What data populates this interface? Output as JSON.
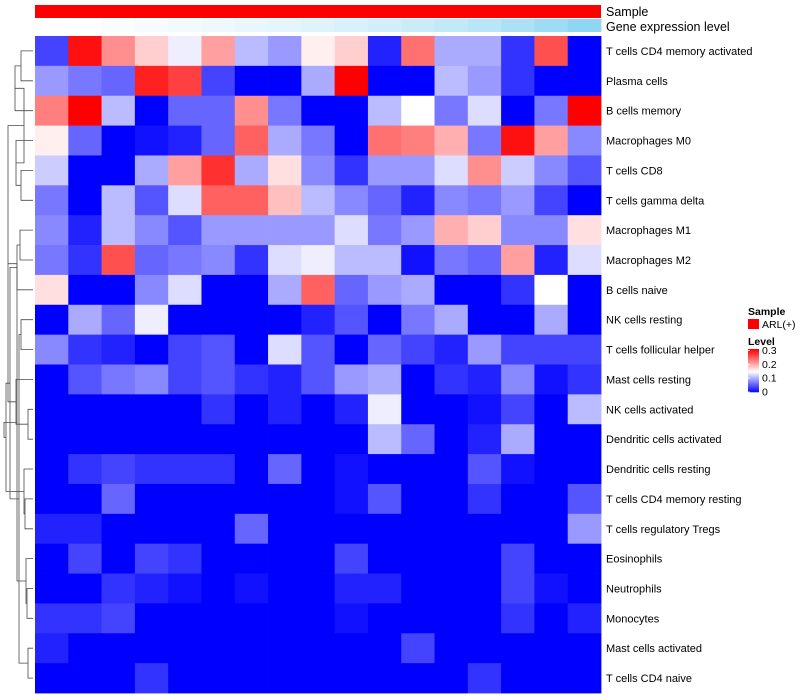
{
  "chart_data": {
    "type": "heatmap",
    "title": "",
    "annotations": {
      "sample_label": "Sample",
      "expression_label": "Gene expression level"
    },
    "rows": [
      "T cells CD4 memory activated",
      "Plasma cells",
      "B cells memory",
      "Macrophages M0",
      "T cells CD8",
      "T cells gamma delta",
      "Macrophages M1",
      "Macrophages M2",
      "B cells naive",
      "NK cells resting",
      "T cells follicular helper",
      "Mast cells resting",
      "NK cells activated",
      "Dendritic cells activated",
      "Dendritic cells resting",
      "T cells CD4 memory resting",
      "T cells regulatory  Tregs",
      "Eosinophils",
      "Neutrophils",
      "Monocytes",
      "Mast cells activated",
      "T cells CD4 naive"
    ],
    "n_columns": 17,
    "values": [
      [
        0.04,
        0.3,
        0.22,
        0.18,
        0.14,
        0.21,
        0.11,
        0.09,
        0.16,
        0.18,
        0.02,
        0.24,
        0.1,
        0.1,
        0.03,
        0.26,
        0.0
      ],
      [
        0.09,
        0.07,
        0.06,
        0.29,
        0.27,
        0.04,
        0.0,
        0.0,
        0.1,
        0.31,
        0.0,
        0.0,
        0.11,
        0.09,
        0.03,
        0.0,
        0.0
      ],
      [
        0.23,
        0.31,
        0.11,
        0.0,
        0.06,
        0.06,
        0.22,
        0.07,
        0.0,
        0.0,
        0.11,
        0.15,
        0.07,
        0.13,
        0.0,
        0.07,
        0.31
      ],
      [
        0.16,
        0.06,
        0.0,
        0.01,
        0.02,
        0.06,
        0.25,
        0.1,
        0.07,
        0.0,
        0.24,
        0.23,
        0.2,
        0.07,
        0.3,
        0.21,
        0.08
      ],
      [
        0.12,
        0.0,
        0.0,
        0.1,
        0.21,
        0.28,
        0.1,
        0.17,
        0.08,
        0.03,
        0.09,
        0.09,
        0.13,
        0.22,
        0.12,
        0.08,
        0.05
      ],
      [
        0.07,
        0.0,
        0.11,
        0.05,
        0.13,
        0.25,
        0.25,
        0.19,
        0.11,
        0.08,
        0.06,
        0.02,
        0.08,
        0.07,
        0.09,
        0.04,
        0.0
      ],
      [
        0.08,
        0.02,
        0.11,
        0.08,
        0.05,
        0.09,
        0.09,
        0.09,
        0.09,
        0.13,
        0.07,
        0.09,
        0.2,
        0.18,
        0.08,
        0.08,
        0.17
      ],
      [
        0.07,
        0.03,
        0.26,
        0.06,
        0.07,
        0.08,
        0.03,
        0.13,
        0.14,
        0.11,
        0.11,
        0.01,
        0.07,
        0.06,
        0.21,
        0.02,
        0.13
      ],
      [
        0.17,
        0.0,
        0.0,
        0.08,
        0.13,
        0.0,
        0.0,
        0.1,
        0.25,
        0.06,
        0.09,
        0.1,
        0.0,
        0.0,
        0.03,
        0.15,
        0.0
      ],
      [
        0.0,
        0.1,
        0.06,
        0.14,
        0.0,
        0.0,
        0.0,
        0.0,
        0.02,
        0.05,
        0.0,
        0.07,
        0.1,
        0.0,
        0.0,
        0.1,
        0.0
      ],
      [
        0.08,
        0.03,
        0.02,
        0.0,
        0.04,
        0.05,
        0.0,
        0.13,
        0.05,
        0.0,
        0.06,
        0.04,
        0.02,
        0.09,
        0.04,
        0.04,
        0.04
      ],
      [
        0.0,
        0.05,
        0.07,
        0.08,
        0.04,
        0.05,
        0.03,
        0.02,
        0.05,
        0.09,
        0.1,
        0.0,
        0.03,
        0.02,
        0.08,
        0.01,
        0.03
      ],
      [
        0.0,
        0.0,
        0.0,
        0.0,
        0.0,
        0.03,
        0.0,
        0.02,
        0.0,
        0.02,
        0.14,
        0.0,
        0.0,
        0.01,
        0.04,
        0.0,
        0.11
      ],
      [
        0.0,
        0.0,
        0.0,
        0.0,
        0.0,
        0.0,
        0.0,
        0.0,
        0.0,
        0.0,
        0.11,
        0.06,
        0.0,
        0.02,
        0.1,
        0.0,
        0.0
      ],
      [
        0.0,
        0.03,
        0.04,
        0.03,
        0.03,
        0.03,
        0.0,
        0.06,
        0.0,
        0.01,
        0.0,
        0.0,
        0.0,
        0.05,
        0.01,
        0.0,
        0.0
      ],
      [
        0.0,
        0.0,
        0.06,
        0.0,
        0.0,
        0.0,
        0.0,
        0.0,
        0.0,
        0.01,
        0.05,
        0.0,
        0.0,
        0.03,
        0.0,
        0.0,
        0.05
      ],
      [
        0.02,
        0.02,
        0.0,
        0.0,
        0.0,
        0.0,
        0.06,
        0.0,
        0.0,
        0.0,
        0.0,
        0.0,
        0.0,
        0.0,
        0.0,
        0.0,
        0.09
      ],
      [
        0.0,
        0.04,
        0.0,
        0.04,
        0.03,
        0.0,
        0.0,
        0.0,
        0.0,
        0.04,
        0.0,
        0.0,
        0.0,
        0.0,
        0.04,
        0.0,
        0.0
      ],
      [
        0.0,
        0.0,
        0.03,
        0.02,
        0.01,
        0.0,
        0.01,
        0.0,
        0.0,
        0.02,
        0.02,
        0.0,
        0.0,
        0.0,
        0.04,
        0.01,
        0.0
      ],
      [
        0.03,
        0.03,
        0.04,
        0.0,
        0.0,
        0.0,
        0.0,
        0.0,
        0.0,
        0.01,
        0.0,
        0.0,
        0.0,
        0.0,
        0.03,
        0.0,
        0.02
      ],
      [
        0.02,
        0.0,
        0.0,
        0.0,
        0.0,
        0.0,
        0.0,
        0.0,
        0.0,
        0.0,
        0.0,
        0.04,
        0.0,
        0.0,
        0.0,
        0.0,
        0.0
      ],
      [
        0.0,
        0.0,
        0.0,
        0.03,
        0.0,
        0.0,
        0.0,
        0.0,
        0.0,
        0.0,
        0.0,
        0.0,
        0.0,
        0.03,
        0.0,
        0.0,
        0.0
      ]
    ],
    "expression_annotation": [
      0.0,
      0.02,
      0.04,
      0.06,
      0.08,
      0.1,
      0.13,
      0.16,
      0.19,
      0.23,
      0.27,
      0.31,
      0.36,
      0.42,
      0.49,
      0.57,
      0.66
    ],
    "color_scale": {
      "min": 0,
      "mid": 0.15,
      "max": 0.31,
      "low": "#0000FF",
      "midColor": "#FFFFFF",
      "high": "#FF0000"
    },
    "expression_colors": {
      "low": "#FFFFFF",
      "high": "#8FD6F2"
    },
    "legend": {
      "sample_title": "Sample",
      "sample_entry": "ARL(+)",
      "sample_color": "#FF0000",
      "level_title": "Level",
      "level_ticks": [
        {
          "value": 0.3,
          "label": "0.3"
        },
        {
          "value": 0.2,
          "label": "0.2"
        },
        {
          "value": 0.1,
          "label": "0.1"
        },
        {
          "value": 0,
          "label": "0"
        }
      ]
    },
    "dendrogram": {
      "merges": [
        [
          0,
          1
        ],
        [
          4,
          5
        ],
        [
          6,
          7
        ],
        [
          12,
          13
        ],
        [
          15,
          16
        ],
        [
          18,
          19
        ],
        [
          20,
          21
        ],
        [
          9,
          10
        ],
        [
          22,
          2
        ],
        [
          23,
          3
        ],
        [
          24,
          8
        ],
        [
          25,
          11
        ],
        [
          26,
          14
        ],
        [
          27,
          17
        ],
        [
          28,
          29
        ],
        [
          30,
          31
        ],
        [
          36,
          32
        ],
        [
          37,
          33
        ],
        [
          38,
          34
        ],
        [
          39,
          35
        ],
        [
          40,
          41
        ]
      ],
      "heights": [
        0.12,
        0.12,
        0.13,
        0.05,
        0.08,
        0.06,
        0.05,
        0.12,
        0.18,
        0.17,
        0.16,
        0.17,
        0.09,
        0.07,
        0.14,
        0.09,
        0.23,
        0.25,
        0.27,
        0.16,
        0.29
      ]
    }
  }
}
